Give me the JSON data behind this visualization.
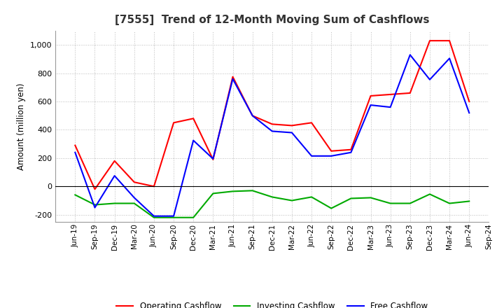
{
  "title": "[7555]  Trend of 12-Month Moving Sum of Cashflows",
  "ylabel": "Amount (million yen)",
  "ylim": [
    -250,
    1100
  ],
  "yticks": [
    -200,
    0,
    200,
    400,
    600,
    800,
    1000
  ],
  "background_color": "#ffffff",
  "grid_color": "#bbbbbb",
  "labels": [
    "Jun-19",
    "Sep-19",
    "Dec-19",
    "Mar-20",
    "Jun-20",
    "Sep-20",
    "Dec-20",
    "Mar-21",
    "Jun-21",
    "Sep-21",
    "Dec-21",
    "Mar-22",
    "Jun-22",
    "Sep-22",
    "Dec-22",
    "Mar-23",
    "Jun-23",
    "Sep-23",
    "Dec-23",
    "Mar-24",
    "Jun-24",
    "Sep-24"
  ],
  "operating": [
    290,
    -20,
    180,
    30,
    0,
    450,
    480,
    190,
    775,
    500,
    440,
    430,
    450,
    250,
    260,
    640,
    650,
    660,
    1030,
    1030,
    600,
    null
  ],
  "investing": [
    -60,
    -130,
    -120,
    -120,
    -220,
    -220,
    -220,
    -50,
    -35,
    -30,
    -75,
    -100,
    -75,
    -155,
    -85,
    -80,
    -120,
    -120,
    -55,
    -120,
    -105,
    null
  ],
  "free": [
    240,
    -150,
    75,
    -80,
    -210,
    -210,
    325,
    195,
    760,
    500,
    390,
    380,
    215,
    215,
    240,
    575,
    560,
    930,
    755,
    905,
    520,
    null
  ],
  "op_color": "#ff0000",
  "inv_color": "#00aa00",
  "free_color": "#0000ff",
  "legend_labels": [
    "Operating Cashflow",
    "Investing Cashflow",
    "Free Cashflow"
  ]
}
